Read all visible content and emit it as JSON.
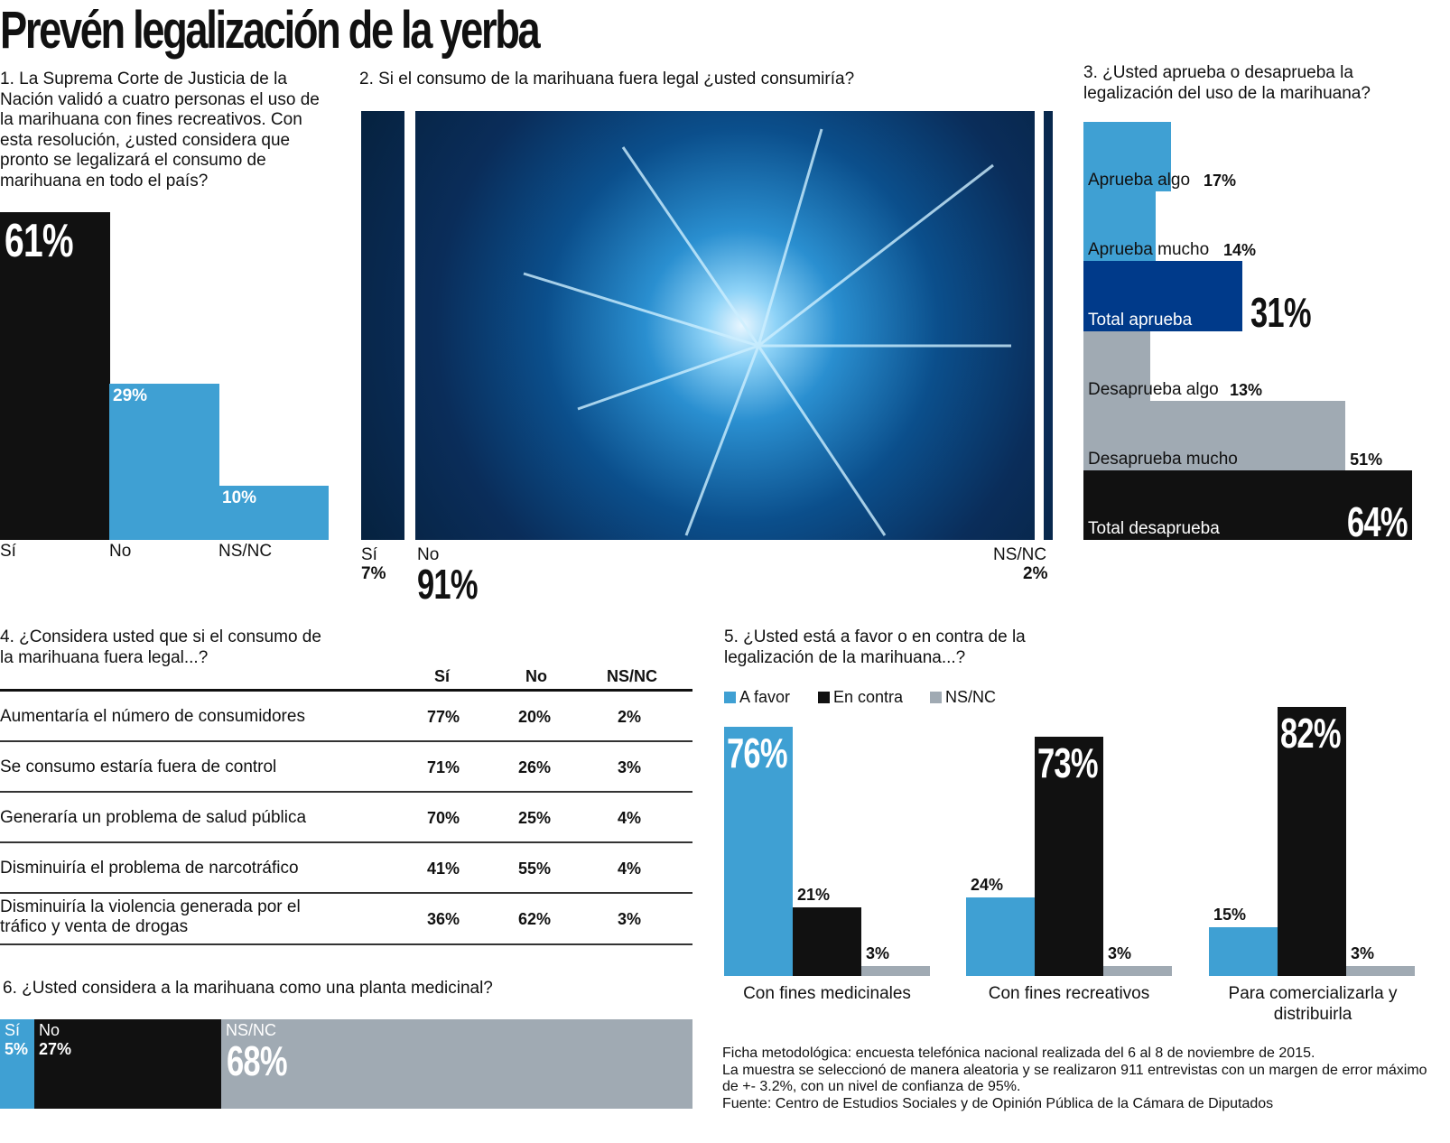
{
  "title": "Prevén legalización de la yerba",
  "colors": {
    "blue": "#3fa0d3",
    "dark_blue": "#003a8a",
    "gray": "#a0aab3",
    "black": "#111111"
  },
  "q1": {
    "question": "1. La Suprema Corte de Justicia de la Nación validó a cuatro personas el uso de la marihuana con fines recreativos. Con esta resolución, ¿usted considera que pronto se legalizará el consumo de marihuana en todo el país?"
  },
  "q2": {
    "question": "2. Si el consumo de la marihuana fuera legal ¿usted consumiría?"
  },
  "q3": {
    "question": "3. ¿Usted aprueba o desaprueba la legalización del uso de la marihuana?"
  },
  "q4": {
    "question": "4. ¿Considera usted que si el consumo de la marihuana fuera legal...?"
  },
  "q5": {
    "question": "5. ¿Usted está a favor o en contra de la legalización de la marihuana...?"
  },
  "q6": {
    "question": "6. ¿Usted considera a la marihuana como una planta medicinal?"
  },
  "footer": {
    "line1": "Ficha metodológica: encuesta telefónica nacional realizada del 6 al 8 de noviembre de 2015.",
    "line2": "La muestra se seleccionó de manera aleatoria y se realizaron 911 entrevistas con un margen de error máximo de +- 3.2%, con un nivel de confianza de 95%.",
    "line3": "Fuente: Centro de Estudios Sociales y de Opinión Pública de la Cámara de Diputados"
  },
  "chart_data": [
    {
      "type": "bar",
      "id": "q1",
      "categories": [
        "Sí",
        "No",
        "NS/NC"
      ],
      "values": [
        61,
        29,
        10
      ],
      "labels": [
        "61%",
        "29%",
        "10%"
      ],
      "colors": [
        "#111111",
        "#3fa0d3",
        "#3fa0d3"
      ]
    },
    {
      "type": "bar",
      "id": "q2",
      "orientation": "stacked-horizontal",
      "categories": [
        "Sí",
        "No",
        "NS/NC"
      ],
      "values": [
        7,
        91,
        2
      ],
      "labels": [
        "7%",
        "91%",
        "2%"
      ]
    },
    {
      "type": "bar",
      "id": "q3",
      "orientation": "horizontal",
      "categories": [
        "Aprueba algo",
        "Aprueba mucho",
        "Total aprueba",
        "Desaprueba algo",
        "Desaprueba mucho",
        "Total desaprueba"
      ],
      "values": [
        17,
        14,
        31,
        13,
        51,
        64
      ],
      "labels": [
        "17%",
        "14%",
        "31%",
        "13%",
        "51%",
        "64%"
      ],
      "colors": [
        "#3fa0d3",
        "#3fa0d3",
        "#003a8a",
        "#a0aab3",
        "#a0aab3",
        "#111111"
      ]
    },
    {
      "type": "table",
      "id": "q4",
      "columns": [
        "",
        "Sí",
        "No",
        "NS/NC"
      ],
      "rows": [
        [
          "Aumentaría el número de consumidores",
          "77%",
          "20%",
          "2%"
        ],
        [
          "Se consumo estaría fuera de control",
          "71%",
          "26%",
          "3%"
        ],
        [
          "Generaría un problema de salud pública",
          "70%",
          "25%",
          "4%"
        ],
        [
          "Disminuiría el problema de narcotráfico",
          "41%",
          "55%",
          "4%"
        ],
        [
          "Disminuiría la violencia generada por el tráfico y venta de drogas",
          "36%",
          "62%",
          "3%"
        ]
      ]
    },
    {
      "type": "bar",
      "id": "q5",
      "categories": [
        "Con fines medicinales",
        "Con fines recreativos",
        "Para comercializarla y distribuirla"
      ],
      "legend": "top-left",
      "series": [
        {
          "name": "A favor",
          "color": "#3fa0d3",
          "values": [
            76,
            24,
            15
          ]
        },
        {
          "name": "En contra",
          "color": "#111111",
          "values": [
            21,
            73,
            82
          ]
        },
        {
          "name": "NS/NC",
          "color": "#a0aab3",
          "values": [
            3,
            3,
            3
          ]
        }
      ]
    },
    {
      "type": "bar",
      "id": "q6",
      "orientation": "stacked-horizontal",
      "categories": [
        "Sí",
        "No",
        "NS/NC"
      ],
      "values": [
        5,
        27,
        68
      ],
      "labels": [
        "5%",
        "27%",
        "68%"
      ],
      "colors": [
        "#3fa0d3",
        "#111111",
        "#a0aab3"
      ]
    }
  ]
}
